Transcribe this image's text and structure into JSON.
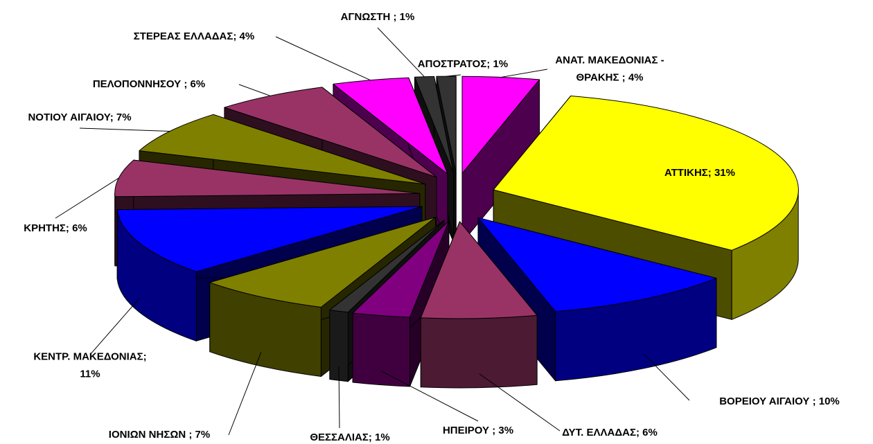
{
  "chart_data": {
    "type": "pie3d",
    "labels": [
      [
        "ΑΝΑΤ. ΜΑΚΕΔΟΝΙΑΣ -",
        "ΘΡΑΚΗΣ ; 4%"
      ],
      [
        "ΑΤΤΙΚΗΣ; 31%"
      ],
      [
        "ΒΟΡΕΙΟΥ ΑΙΓΑΙΟΥ ; 10%"
      ],
      [
        "ΔΥΤ. ΕΛΛΑΔΑΣ; 6%"
      ],
      [
        "ΗΠΕΙΡΟΥ ; 3%"
      ],
      [
        "ΘΕΣΣΑΛΙΑΣ; 1%"
      ],
      [
        "ΙΟΝΙΩΝ ΝΗΣΩΝ ; 7%"
      ],
      [
        "ΚΕΝΤΡ. ΜΑΚΕΔΟΝΙΑΣ;",
        "11%"
      ],
      [
        "ΚΡΗΤΗΣ; 6%"
      ],
      [
        "ΝΟΤΙΟΥ ΑΙΓΑΙΟΥ; 7%"
      ],
      [
        "ΠΕΛΟΠΟΝΝΗΣΟΥ ; 6%"
      ],
      [
        "ΣΤΕΡΕΑΣ ΕΛΛΑΔΑΣ; 4%"
      ],
      [
        "ΑΓΝΩΣΤΗ ; 1%"
      ],
      [
        "ΑΠΟΣΤΡΑΤΟΣ; 1%"
      ]
    ],
    "values": [
      4,
      31,
      10,
      6,
      3,
      1,
      7,
      11,
      6,
      7,
      6,
      4,
      1,
      1
    ],
    "colors": [
      "#ff00ff",
      "#ffff00",
      "#0000ff",
      "#993366",
      "#800080",
      "#333333",
      "#808000",
      "#0000ff",
      "#993366",
      "#808000",
      "#993366",
      "#ff00ff",
      "#333333",
      "#333333"
    ]
  }
}
